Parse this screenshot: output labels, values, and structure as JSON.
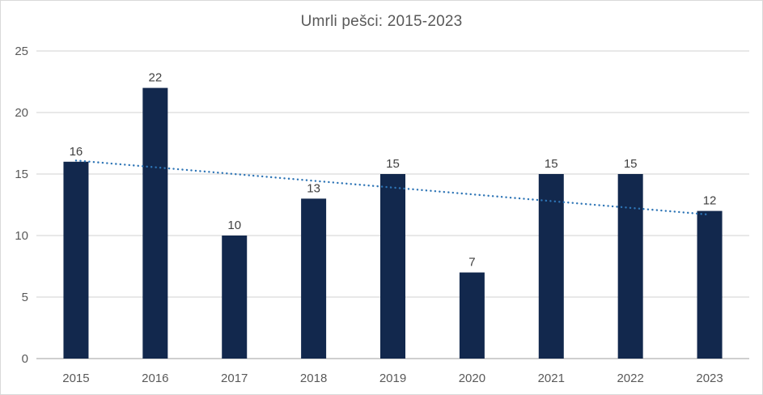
{
  "chart_data": {
    "type": "bar",
    "title": "Umrli pešci: 2015-2023",
    "categories": [
      "2015",
      "2016",
      "2017",
      "2018",
      "2019",
      "2020",
      "2021",
      "2022",
      "2023"
    ],
    "values": [
      16,
      22,
      10,
      13,
      15,
      7,
      15,
      15,
      12
    ],
    "xlabel": "",
    "ylabel": "",
    "ylim": [
      0,
      25
    ],
    "yticks": [
      0,
      5,
      10,
      15,
      20,
      25
    ],
    "grid": true,
    "legend": false,
    "data_labels": true,
    "trendline": {
      "type": "linear",
      "style": "dotted",
      "start_value": 16.1,
      "end_value": 11.7
    },
    "colors": {
      "bar": "#12284d",
      "trend": "#2e75b6",
      "gridline": "#d9d9d9",
      "axis_line": "#bfbfbf",
      "tick_text": "#595959",
      "data_label_text": "#404040",
      "title_text": "#595959",
      "frame_border": "#d9d9d9",
      "background": "#ffffff"
    }
  }
}
